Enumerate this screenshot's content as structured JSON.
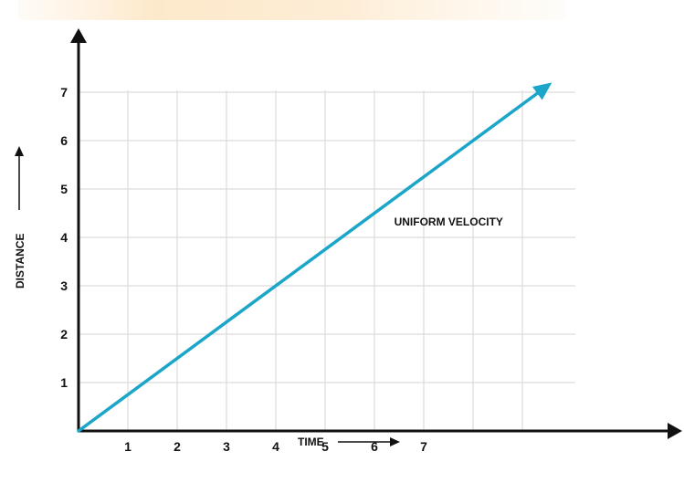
{
  "chart_data": {
    "type": "line",
    "title": "",
    "xlabel": "TIME",
    "ylabel": "DISTANCE",
    "x_ticks": [
      1,
      2,
      3,
      4,
      5,
      6,
      7
    ],
    "y_ticks": [
      1,
      2,
      3,
      4,
      5,
      6,
      7
    ],
    "xlim": [
      0,
      9.6
    ],
    "ylim": [
      0,
      7
    ],
    "grid": true,
    "series": [
      {
        "name": "",
        "x": [
          0,
          9.6
        ],
        "y": [
          0,
          7.2
        ],
        "color": "#1ba6c9",
        "arrow_end": true
      }
    ],
    "annotations": [
      {
        "text": "UNIFORM VELOCITY",
        "x": 6.4,
        "y": 4.25
      }
    ]
  },
  "colors": {
    "series": "#1ba6c9",
    "axis": "#111111",
    "grid": "#dcdcdc",
    "header_band": "#fde8c8"
  }
}
